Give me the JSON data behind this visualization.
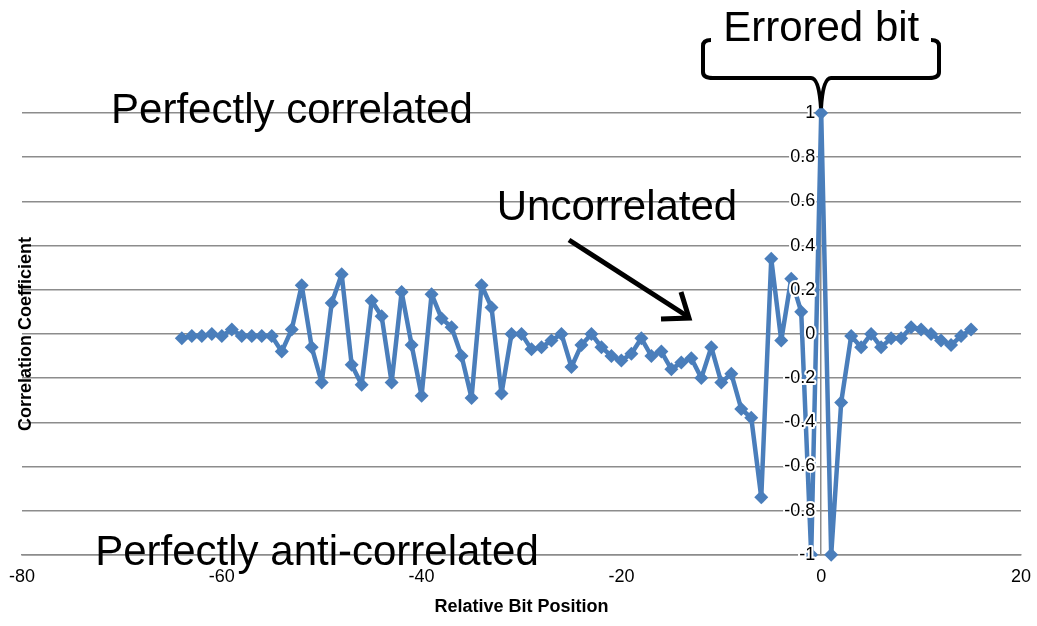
{
  "chart_data": {
    "type": "line",
    "xlabel": "Relative Bit Position",
    "ylabel": "Correlation Coefficient",
    "x": [
      -64,
      -63,
      -62,
      -61,
      -60,
      -59,
      -58,
      -57,
      -56,
      -55,
      -54,
      -53,
      -52,
      -51,
      -50,
      -49,
      -48,
      -47,
      -46,
      -45,
      -44,
      -43,
      -42,
      -41,
      -40,
      -39,
      -38,
      -37,
      -36,
      -35,
      -34,
      -33,
      -32,
      -31,
      -30,
      -29,
      -28,
      -27,
      -26,
      -25,
      -24,
      -23,
      -22,
      -21,
      -20,
      -19,
      -18,
      -17,
      -16,
      -15,
      -14,
      -13,
      -12,
      -11,
      -10,
      -9,
      -8,
      -7,
      -6,
      -5,
      -4,
      -3,
      -2,
      -1,
      0,
      1,
      2,
      3,
      4,
      5,
      6,
      7,
      8,
      9,
      10,
      11,
      12,
      13,
      14,
      15
    ],
    "series": [
      {
        "color": "#4a7ebb",
        "values": [
          -0.02,
          -0.01,
          -0.01,
          0.0,
          -0.01,
          0.02,
          -0.01,
          -0.01,
          -0.01,
          -0.01,
          -0.08,
          0.02,
          0.22,
          -0.06,
          -0.22,
          0.14,
          0.27,
          -0.14,
          -0.23,
          0.15,
          0.08,
          -0.22,
          0.19,
          -0.05,
          -0.28,
          0.18,
          0.07,
          0.03,
          -0.1,
          -0.29,
          0.22,
          0.12,
          -0.27,
          0.0,
          0.0,
          -0.07,
          -0.06,
          -0.03,
          0.0,
          -0.15,
          -0.05,
          0.0,
          -0.06,
          -0.1,
          -0.12,
          -0.09,
          -0.02,
          -0.1,
          -0.08,
          -0.16,
          -0.13,
          -0.11,
          -0.2,
          -0.06,
          -0.22,
          -0.18,
          -0.34,
          -0.38,
          -0.74,
          0.34,
          -0.03,
          0.25,
          0.1,
          -1,
          1,
          -1,
          -0.31,
          -0.01,
          -0.06,
          0.0,
          -0.06,
          -0.02,
          -0.02,
          0.03,
          0.02,
          0.0,
          -0.03,
          -0.05,
          -0.01,
          0.02
        ]
      }
    ],
    "xlim": [
      -80,
      20
    ],
    "xticks": [
      -80,
      -60,
      -40,
      -20,
      0,
      20
    ],
    "ylim": [
      -1,
      1
    ],
    "yticks": [
      -1,
      -0.8,
      -0.6,
      -0.4,
      -0.2,
      0,
      0.2,
      0.4,
      0.6,
      0.8,
      1
    ],
    "grid": "y",
    "marker": "diamond",
    "line_style": "solid",
    "legend": false,
    "annotations": [
      "Perfectly correlated",
      "Perfectly anti-correlated",
      "Uncorrelated",
      {
        "text": "Errored bit",
        "x": 0,
        "y": 1
      }
    ]
  }
}
